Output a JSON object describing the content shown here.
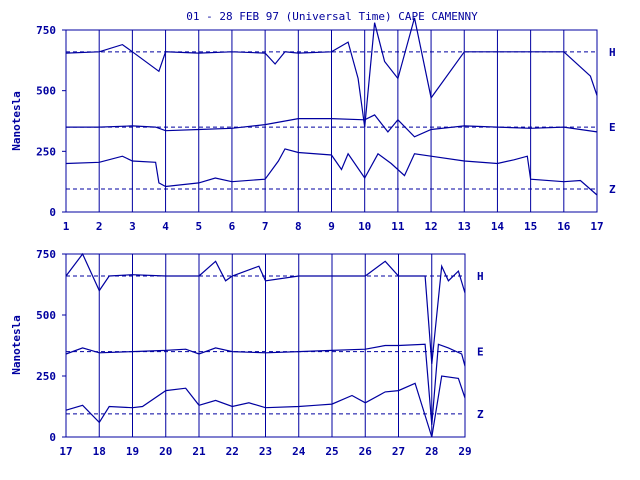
{
  "chart_data": [
    {
      "type": "line",
      "title": "01 - 28 FEB 97 (Universal Time) CAPE CAMENNY",
      "ylabel": "Nanotesla",
      "ylim": [
        0,
        750
      ],
      "yticks": [
        0,
        250,
        500,
        750
      ],
      "xlim": [
        1,
        17
      ],
      "xticks": [
        "1",
        "2",
        "3",
        "4",
        "5",
        "6",
        "7",
        "8",
        "9",
        "10",
        "11",
        "12",
        "13",
        "14",
        "15",
        "16",
        "17"
      ],
      "grid": "vertical lines at each day",
      "baselines": {
        "H": 660,
        "E": 350,
        "Z": 95
      },
      "series": [
        {
          "name": "H",
          "values": [
            [
              1,
              655
            ],
            [
              2,
              660
            ],
            [
              2.7,
              690
            ],
            [
              3,
              660
            ],
            [
              3.8,
              580
            ],
            [
              4,
              660
            ],
            [
              5,
              655
            ],
            [
              6,
              660
            ],
            [
              7,
              655
            ],
            [
              7.3,
              610
            ],
            [
              7.6,
              660
            ],
            [
              8,
              655
            ],
            [
              9,
              660
            ],
            [
              9.5,
              700
            ],
            [
              9.8,
              550
            ],
            [
              10,
              350
            ],
            [
              10.3,
              780
            ],
            [
              10.6,
              620
            ],
            [
              11,
              550
            ],
            [
              11.5,
              800
            ],
            [
              12,
              470
            ],
            [
              13,
              660
            ],
            [
              14,
              660
            ],
            [
              15,
              660
            ],
            [
              16,
              660
            ],
            [
              16.8,
              560
            ],
            [
              17,
              480
            ]
          ]
        },
        {
          "name": "E",
          "values": [
            [
              1,
              350
            ],
            [
              2,
              350
            ],
            [
              3,
              355
            ],
            [
              3.7,
              350
            ],
            [
              4,
              335
            ],
            [
              5,
              340
            ],
            [
              6,
              345
            ],
            [
              7,
              360
            ],
            [
              8,
              385
            ],
            [
              9,
              385
            ],
            [
              10,
              380
            ],
            [
              10.3,
              400
            ],
            [
              10.7,
              330
            ],
            [
              11,
              380
            ],
            [
              11.5,
              310
            ],
            [
              12,
              340
            ],
            [
              13,
              355
            ],
            [
              14,
              350
            ],
            [
              15,
              345
            ],
            [
              16,
              350
            ],
            [
              17,
              330
            ]
          ]
        },
        {
          "name": "Z",
          "values": [
            [
              1,
              200
            ],
            [
              2,
              205
            ],
            [
              2.7,
              230
            ],
            [
              3,
              210
            ],
            [
              3.7,
              205
            ],
            [
              3.8,
              120
            ],
            [
              4,
              105
            ],
            [
              5,
              120
            ],
            [
              5.5,
              140
            ],
            [
              6,
              125
            ],
            [
              7,
              135
            ],
            [
              7.4,
              210
            ],
            [
              7.6,
              260
            ],
            [
              8,
              245
            ],
            [
              9,
              235
            ],
            [
              9.3,
              175
            ],
            [
              9.5,
              240
            ],
            [
              10,
              140
            ],
            [
              10.4,
              240
            ],
            [
              10.8,
              200
            ],
            [
              11.2,
              150
            ],
            [
              11.5,
              240
            ],
            [
              12,
              230
            ],
            [
              13,
              210
            ],
            [
              14,
              200
            ],
            [
              14.5,
              215
            ],
            [
              14.9,
              230
            ],
            [
              15,
              135
            ],
            [
              16,
              125
            ],
            [
              16.5,
              130
            ],
            [
              17,
              70
            ]
          ]
        }
      ]
    },
    {
      "type": "line",
      "title": "",
      "ylabel": "Nanotesla",
      "ylim": [
        0,
        750
      ],
      "yticks": [
        0,
        250,
        500,
        750
      ],
      "xlim": [
        17,
        29
      ],
      "xticks": [
        "17",
        "18",
        "19",
        "20",
        "21",
        "22",
        "23",
        "24",
        "25",
        "26",
        "27",
        "28",
        "29"
      ],
      "grid": "vertical lines at each day",
      "baselines": {
        "H": 660,
        "E": 350,
        "Z": 95
      },
      "series": [
        {
          "name": "H",
          "values": [
            [
              17,
              660
            ],
            [
              17.5,
              750
            ],
            [
              18,
              600
            ],
            [
              18.3,
              660
            ],
            [
              19,
              665
            ],
            [
              20,
              660
            ],
            [
              20.6,
              660
            ],
            [
              21,
              660
            ],
            [
              21.5,
              720
            ],
            [
              21.8,
              640
            ],
            [
              22,
              660
            ],
            [
              22.8,
              700
            ],
            [
              23,
              640
            ],
            [
              24,
              660
            ],
            [
              25,
              660
            ],
            [
              25.5,
              660
            ],
            [
              26,
              660
            ],
            [
              26.6,
              720
            ],
            [
              27,
              660
            ],
            [
              27.8,
              660
            ],
            [
              28,
              300
            ],
            [
              28.3,
              700
            ],
            [
              28.5,
              640
            ],
            [
              28.8,
              680
            ],
            [
              29,
              590
            ]
          ]
        },
        {
          "name": "E",
          "values": [
            [
              17,
              340
            ],
            [
              17.5,
              365
            ],
            [
              18,
              345
            ],
            [
              19,
              350
            ],
            [
              20,
              355
            ],
            [
              20.6,
              360
            ],
            [
              21,
              340
            ],
            [
              21.5,
              365
            ],
            [
              22,
              350
            ],
            [
              23,
              345
            ],
            [
              24,
              350
            ],
            [
              25,
              355
            ],
            [
              26,
              360
            ],
            [
              26.6,
              375
            ],
            [
              27,
              375
            ],
            [
              27.8,
              380
            ],
            [
              28,
              50
            ],
            [
              28.2,
              380
            ],
            [
              28.5,
              365
            ],
            [
              28.9,
              340
            ],
            [
              29,
              290
            ]
          ]
        },
        {
          "name": "Z",
          "values": [
            [
              17,
              110
            ],
            [
              17.5,
              130
            ],
            [
              18,
              60
            ],
            [
              18.3,
              125
            ],
            [
              19,
              120
            ],
            [
              19.3,
              125
            ],
            [
              20,
              190
            ],
            [
              20.6,
              200
            ],
            [
              21,
              130
            ],
            [
              21.5,
              150
            ],
            [
              22,
              125
            ],
            [
              22.5,
              140
            ],
            [
              23,
              120
            ],
            [
              24,
              125
            ],
            [
              24.5,
              130
            ],
            [
              25,
              135
            ],
            [
              25.6,
              170
            ],
            [
              26,
              140
            ],
            [
              26.6,
              185
            ],
            [
              27,
              190
            ],
            [
              27.5,
              220
            ],
            [
              28,
              0
            ],
            [
              28.3,
              250
            ],
            [
              28.8,
              240
            ],
            [
              29,
              160
            ]
          ]
        }
      ]
    }
  ]
}
